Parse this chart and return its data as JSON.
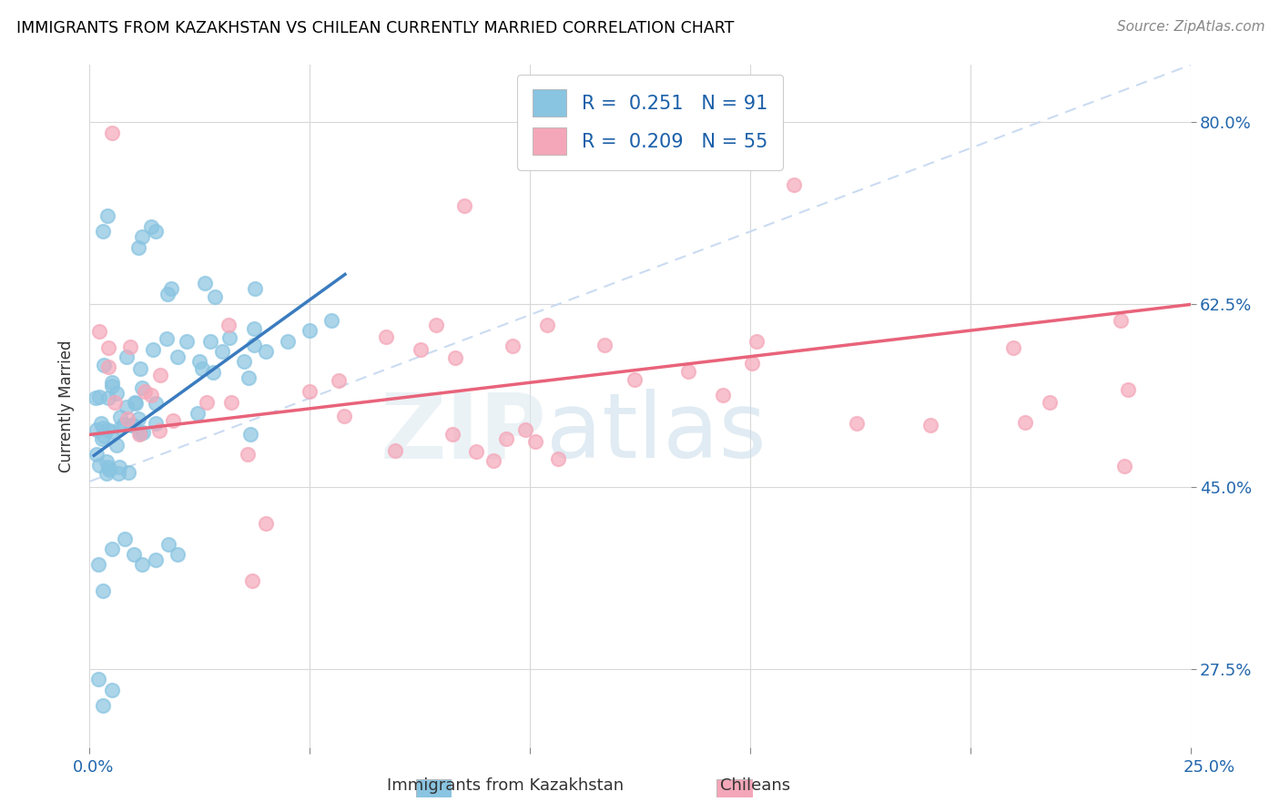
{
  "title": "IMMIGRANTS FROM KAZAKHSTAN VS CHILEAN CURRENTLY MARRIED CORRELATION CHART",
  "source": "Source: ZipAtlas.com",
  "ylabel": "Currently Married",
  "y_ticks": [
    0.275,
    0.45,
    0.625,
    0.8
  ],
  "y_tick_labels": [
    "27.5%",
    "45.0%",
    "62.5%",
    "80.0%"
  ],
  "x_min": 0.0,
  "x_max": 0.25,
  "y_min": 0.2,
  "y_max": 0.855,
  "legend_r1": "0.251",
  "legend_n1": "91",
  "legend_r2": "0.209",
  "legend_n2": "55",
  "color_kaz": "#89c4e1",
  "color_chile": "#f4a7b9",
  "color_kaz_line": "#3a7bbf",
  "color_chile_line": "#e8637a",
  "color_diagonal": "#c5d8f0",
  "watermark_zip": "ZIP",
  "watermark_atlas": "atlas",
  "kaz_x": [
    0.002,
    0.002,
    0.002,
    0.003,
    0.003,
    0.003,
    0.003,
    0.003,
    0.003,
    0.003,
    0.004,
    0.004,
    0.004,
    0.004,
    0.004,
    0.005,
    0.005,
    0.005,
    0.005,
    0.005,
    0.005,
    0.005,
    0.006,
    0.006,
    0.006,
    0.006,
    0.007,
    0.007,
    0.007,
    0.007,
    0.007,
    0.007,
    0.008,
    0.008,
    0.008,
    0.008,
    0.009,
    0.009,
    0.009,
    0.01,
    0.01,
    0.01,
    0.01,
    0.011,
    0.011,
    0.011,
    0.012,
    0.012,
    0.013,
    0.013,
    0.014,
    0.014,
    0.015,
    0.015,
    0.016,
    0.016,
    0.017,
    0.018,
    0.018,
    0.019,
    0.02,
    0.021,
    0.022,
    0.023,
    0.024,
    0.025,
    0.027,
    0.028,
    0.03,
    0.032,
    0.034,
    0.036,
    0.038,
    0.04,
    0.042,
    0.045,
    0.048,
    0.052,
    0.055,
    0.06,
    0.003,
    0.004,
    0.004,
    0.005,
    0.005,
    0.006,
    0.006,
    0.007,
    0.008,
    0.009,
    0.01
  ],
  "kaz_y": [
    0.49,
    0.51,
    0.53,
    0.47,
    0.49,
    0.51,
    0.525,
    0.54,
    0.555,
    0.57,
    0.48,
    0.5,
    0.52,
    0.54,
    0.56,
    0.47,
    0.49,
    0.505,
    0.52,
    0.535,
    0.55,
    0.565,
    0.48,
    0.5,
    0.52,
    0.54,
    0.46,
    0.48,
    0.5,
    0.515,
    0.53,
    0.545,
    0.47,
    0.49,
    0.51,
    0.53,
    0.48,
    0.5,
    0.52,
    0.47,
    0.49,
    0.51,
    0.53,
    0.48,
    0.5,
    0.52,
    0.49,
    0.51,
    0.5,
    0.52,
    0.51,
    0.53,
    0.51,
    0.53,
    0.51,
    0.53,
    0.52,
    0.52,
    0.54,
    0.53,
    0.54,
    0.55,
    0.55,
    0.56,
    0.56,
    0.57,
    0.57,
    0.58,
    0.58,
    0.59,
    0.59,
    0.6,
    0.6,
    0.61,
    0.615,
    0.62,
    0.625,
    0.63,
    0.64,
    0.65,
    0.35,
    0.32,
    0.38,
    0.295,
    0.42,
    0.39,
    0.44,
    0.41,
    0.43,
    0.39,
    0.41
  ],
  "chile_x": [
    0.003,
    0.004,
    0.005,
    0.006,
    0.007,
    0.008,
    0.009,
    0.01,
    0.011,
    0.012,
    0.013,
    0.014,
    0.015,
    0.016,
    0.018,
    0.02,
    0.022,
    0.025,
    0.028,
    0.03,
    0.033,
    0.036,
    0.04,
    0.044,
    0.048,
    0.053,
    0.058,
    0.063,
    0.068,
    0.073,
    0.08,
    0.087,
    0.095,
    0.103,
    0.11,
    0.118,
    0.125,
    0.133,
    0.14,
    0.148,
    0.155,
    0.162,
    0.17,
    0.178,
    0.185,
    0.192,
    0.2,
    0.208,
    0.215,
    0.222,
    0.01,
    0.02,
    0.03,
    0.05,
    0.07
  ],
  "chile_y": [
    0.56,
    0.54,
    0.555,
    0.545,
    0.535,
    0.53,
    0.525,
    0.52,
    0.515,
    0.51,
    0.515,
    0.5,
    0.505,
    0.51,
    0.5,
    0.505,
    0.51,
    0.505,
    0.51,
    0.515,
    0.51,
    0.515,
    0.52,
    0.515,
    0.52,
    0.525,
    0.525,
    0.53,
    0.53,
    0.535,
    0.535,
    0.54,
    0.545,
    0.55,
    0.55,
    0.555,
    0.555,
    0.56,
    0.56,
    0.565,
    0.565,
    0.57,
    0.57,
    0.575,
    0.575,
    0.58,
    0.58,
    0.585,
    0.585,
    0.59,
    0.455,
    0.47,
    0.445,
    0.435,
    0.44
  ]
}
